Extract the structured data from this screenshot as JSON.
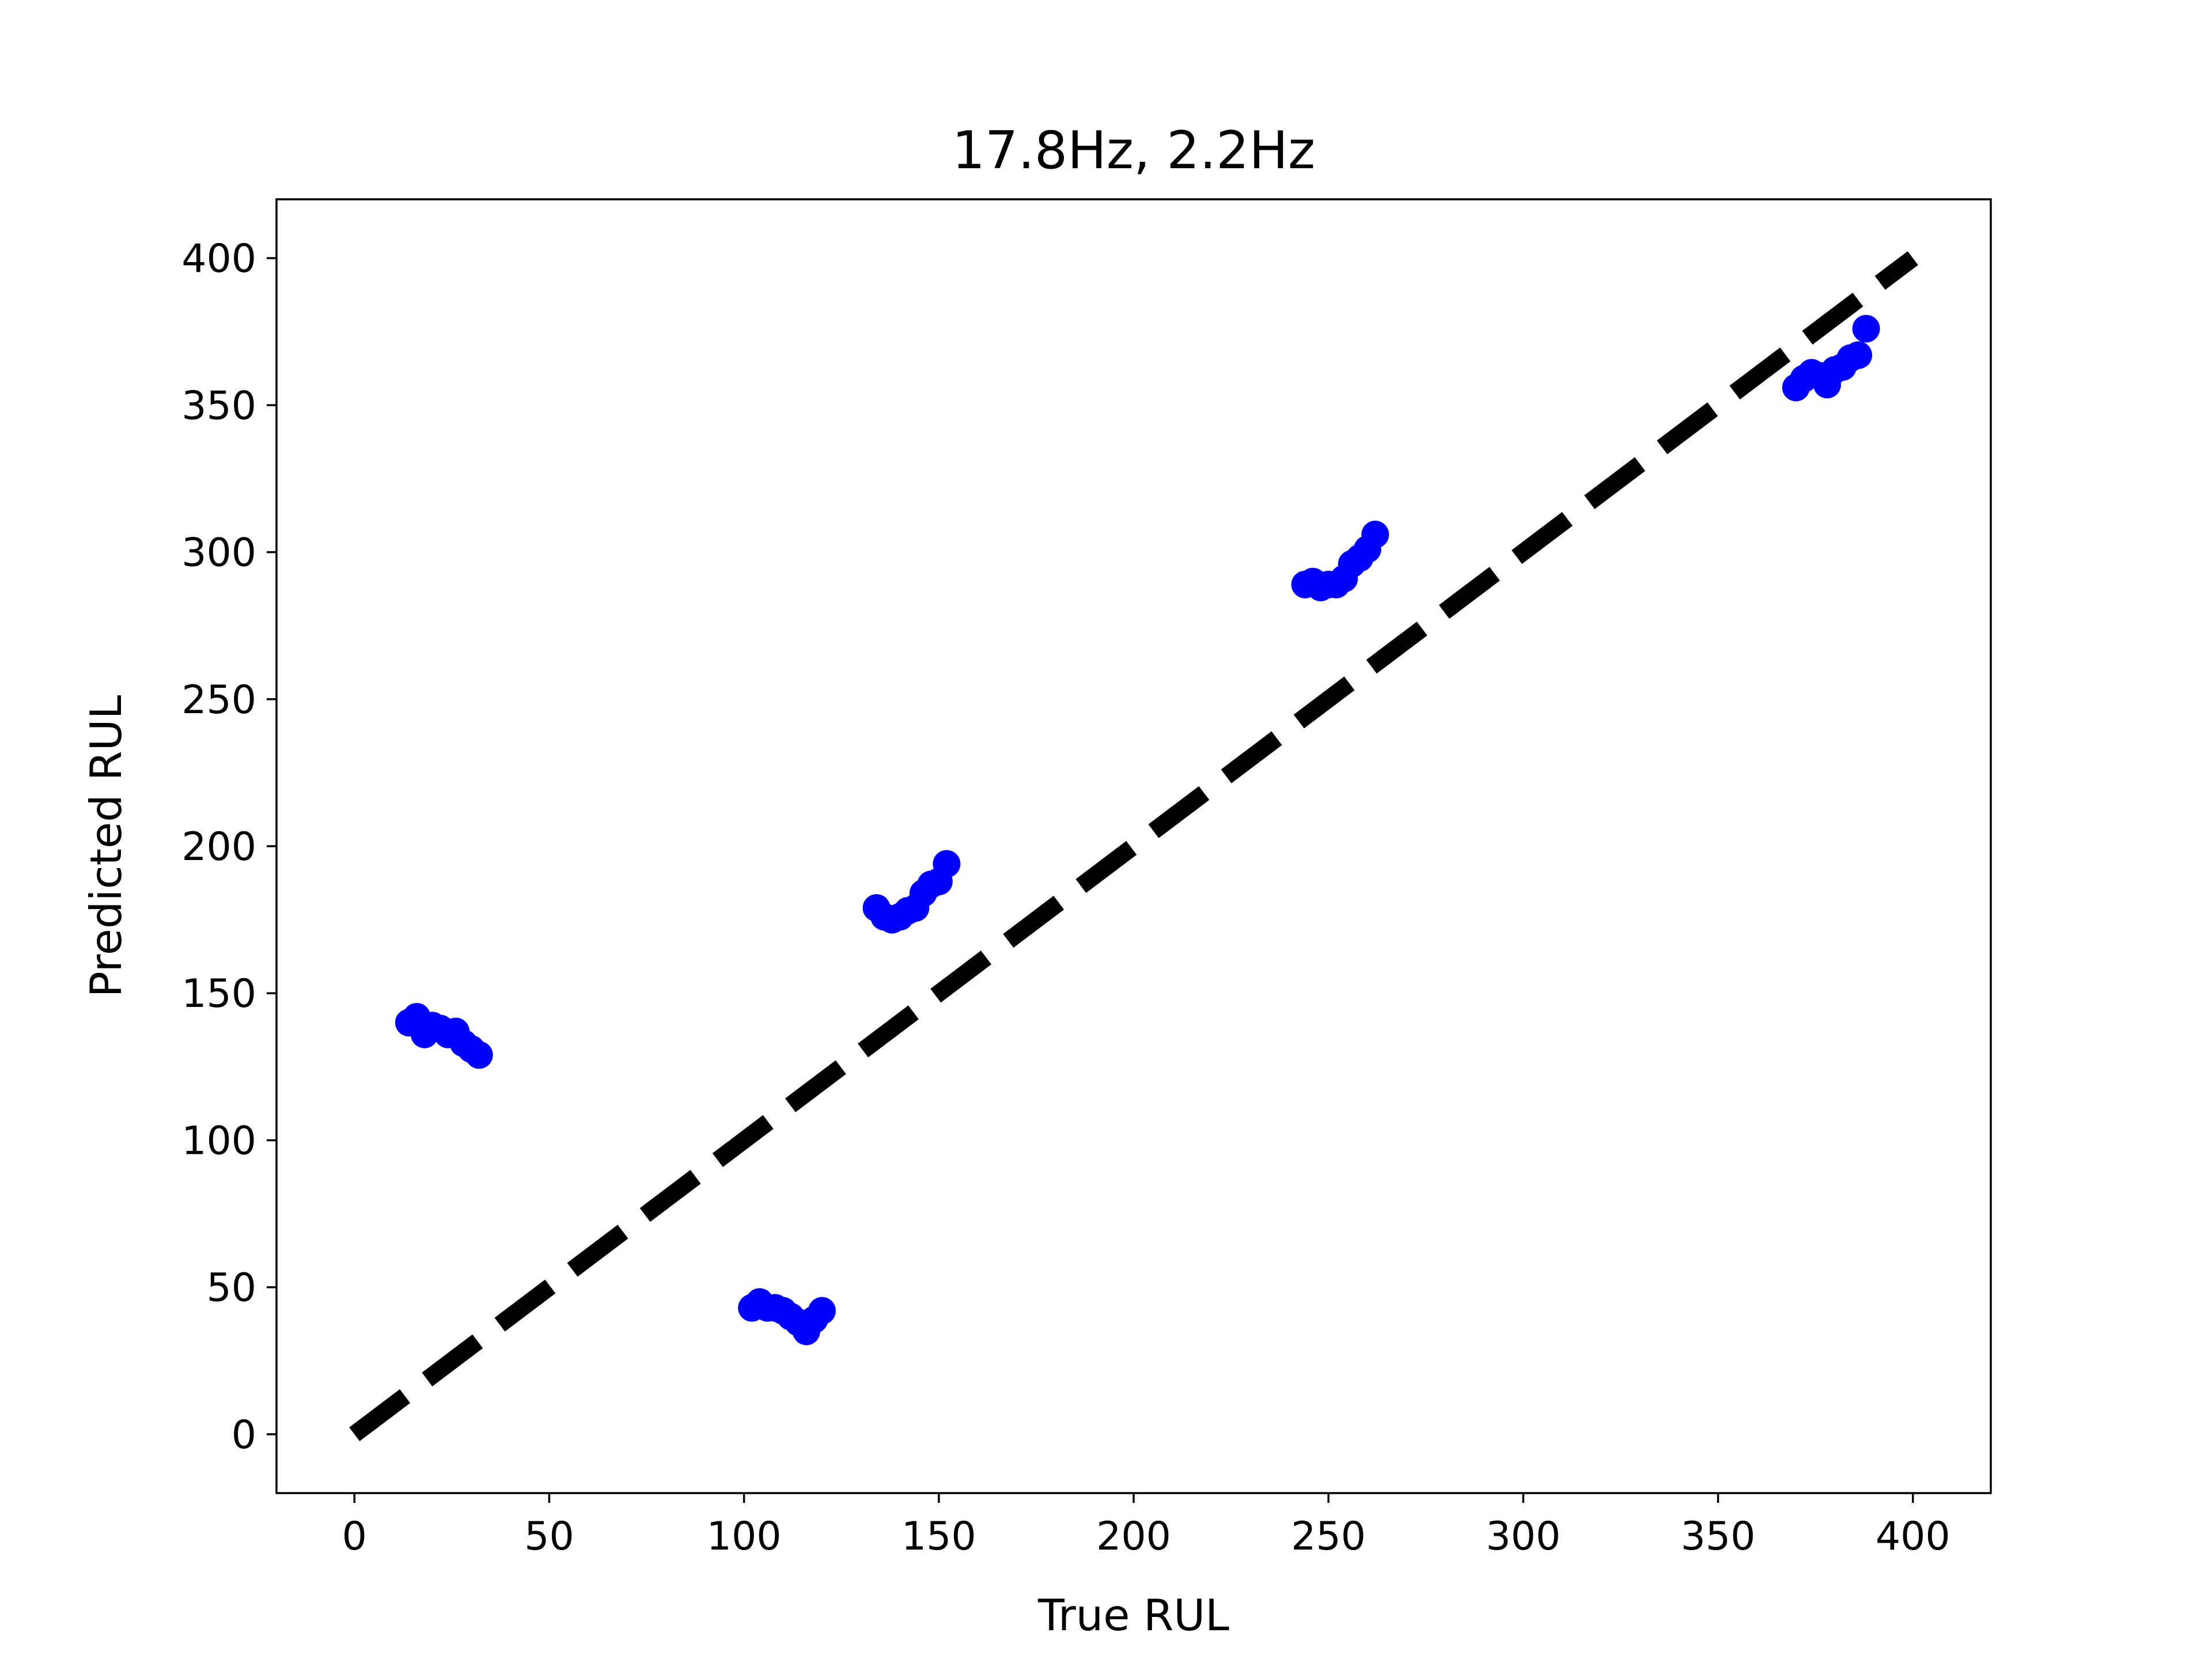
{
  "chart_data": {
    "type": "scatter",
    "title": "17.8Hz, 2.2Hz",
    "xlabel": "True RUL",
    "ylabel": "Predicted RUL",
    "xlim": [
      -20,
      420
    ],
    "ylim": [
      -20,
      420
    ],
    "xticks": [
      0,
      50,
      100,
      150,
      200,
      250,
      300,
      350,
      400
    ],
    "yticks": [
      0,
      50,
      100,
      150,
      200,
      250,
      300,
      350,
      400
    ],
    "grid": false,
    "reference_line": {
      "style": "dashed",
      "color": "#000000",
      "x": [
        0,
        400
      ],
      "y": [
        0,
        400
      ]
    },
    "series": [
      {
        "color": "#0000ff",
        "points": [
          [
            14,
            140
          ],
          [
            16,
            142
          ],
          [
            18,
            136
          ],
          [
            20,
            139
          ],
          [
            22,
            138
          ],
          [
            24,
            136
          ],
          [
            26,
            137
          ],
          [
            28,
            133
          ],
          [
            30,
            131
          ],
          [
            32,
            129
          ],
          [
            102,
            43
          ],
          [
            104,
            45
          ],
          [
            106,
            43
          ],
          [
            108,
            43
          ],
          [
            110,
            42
          ],
          [
            112,
            40
          ],
          [
            114,
            38
          ],
          [
            116,
            35
          ],
          [
            118,
            39
          ],
          [
            120,
            42
          ],
          [
            134,
            179
          ],
          [
            136,
            176
          ],
          [
            138,
            175
          ],
          [
            140,
            176
          ],
          [
            142,
            178
          ],
          [
            144,
            179
          ],
          [
            146,
            184
          ],
          [
            148,
            187
          ],
          [
            150,
            188
          ],
          [
            152,
            194
          ],
          [
            244,
            289
          ],
          [
            246,
            290
          ],
          [
            248,
            288
          ],
          [
            250,
            289
          ],
          [
            252,
            289
          ],
          [
            254,
            291
          ],
          [
            256,
            296
          ],
          [
            258,
            298
          ],
          [
            260,
            301
          ],
          [
            262,
            306
          ],
          [
            370,
            356
          ],
          [
            372,
            359
          ],
          [
            374,
            361
          ],
          [
            376,
            360
          ],
          [
            378,
            357
          ],
          [
            380,
            362
          ],
          [
            382,
            363
          ],
          [
            384,
            366
          ],
          [
            386,
            367
          ],
          [
            388,
            376
          ]
        ]
      }
    ]
  }
}
